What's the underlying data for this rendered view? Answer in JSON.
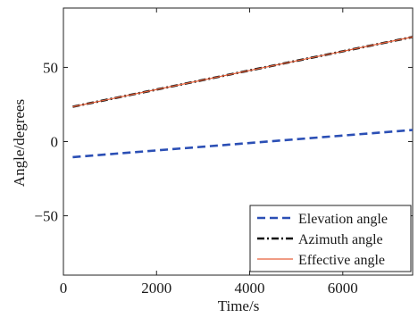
{
  "chart_data": {
    "type": "line",
    "title": "",
    "xlabel": "Time/s",
    "ylabel": "Angle/degrees",
    "xlim": [
      0,
      7500
    ],
    "ylim": [
      -90,
      90
    ],
    "xticks": [
      0,
      2000,
      4000,
      6000
    ],
    "yticks": [
      50,
      0,
      -50
    ],
    "xtick_labels": [
      "0",
      "2000",
      "4000",
      "6000"
    ],
    "ytick_labels": [
      "50",
      "0",
      "−50"
    ],
    "grid": false,
    "legend_position": "bottom-right",
    "series": [
      {
        "name": "Elevation angle",
        "color": "#2b4fb5",
        "style": "dashed",
        "x": [
          200,
          7500
        ],
        "y": [
          -10.5,
          7.8
        ]
      },
      {
        "name": "Azimuth angle",
        "color": "#111111",
        "style": "dashdot",
        "x": [
          200,
          7500
        ],
        "y": [
          23.5,
          70.5
        ]
      },
      {
        "name": "Effective angle",
        "color": "#e8603a",
        "style": "solid",
        "x": [
          200,
          7500
        ],
        "y": [
          23.5,
          70.5
        ]
      }
    ]
  }
}
